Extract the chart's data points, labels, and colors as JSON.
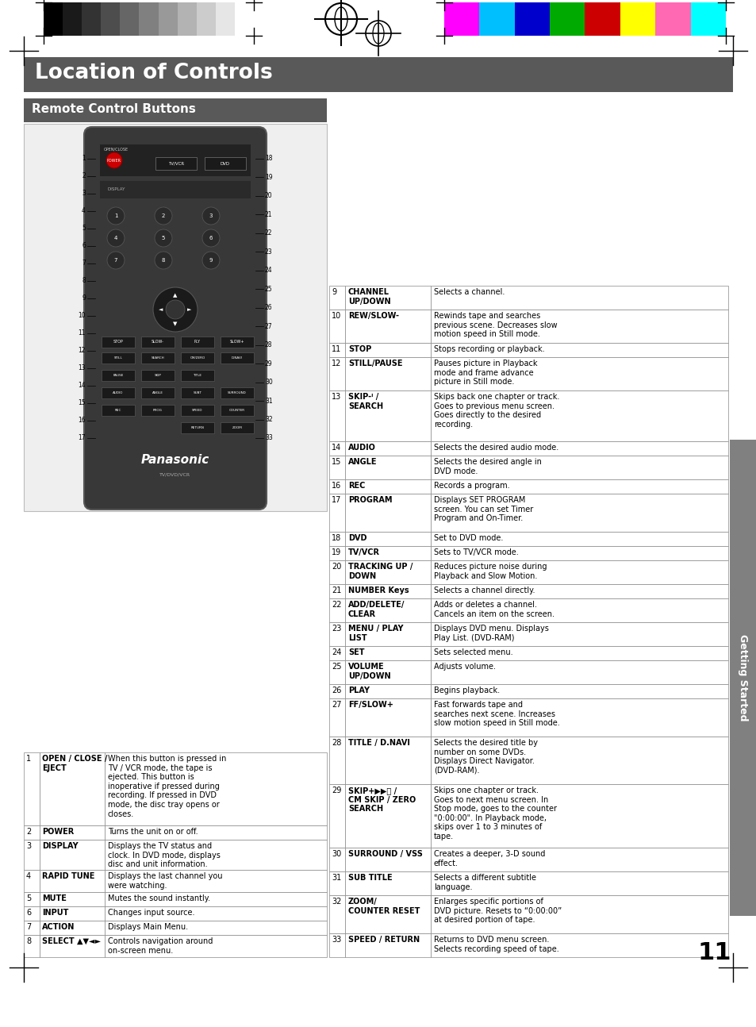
{
  "title": "Location of Controls",
  "subtitle": "Remote Control Buttons",
  "page_number": "11",
  "sidebar_text": "Getting Started",
  "title_bg": "#595959",
  "subtitle_bg": "#595959",
  "sidebar_bg": "#808080",
  "right_table": [
    {
      "num": "9",
      "button": "CHANNEL\nUP/DOWN",
      "desc": "Selects a channel."
    },
    {
      "num": "10",
      "button": "REW/SLOW-",
      "desc": "Rewinds tape and searches\nprevious scene. Decreases slow\nmotion speed in Still mode."
    },
    {
      "num": "11",
      "button": "STOP",
      "desc": "Stops recording or playback."
    },
    {
      "num": "12",
      "button": "STILL/PAUSE",
      "desc": "Pauses picture in Playback\nmode and frame advance\npicture in Still mode."
    },
    {
      "num": "13",
      "button": "SKIP-ᑊ /\nSEARCH",
      "desc": "Skips back one chapter or track.\nGoes to previous menu screen.\nGoes directly to the desired\nrecording."
    },
    {
      "num": "14",
      "button": "AUDIO",
      "desc": "Selects the desired audio mode."
    },
    {
      "num": "15",
      "button": "ANGLE",
      "desc": "Selects the desired angle in\nDVD mode."
    },
    {
      "num": "16",
      "button": "REC",
      "desc": "Records a program."
    },
    {
      "num": "17",
      "button": "PROGRAM",
      "desc": "Displays SET PROGRAM\nscreen. You can set Timer\nProgram and On-Timer."
    },
    {
      "num": "18",
      "button": "DVD",
      "desc": "Set to DVD mode."
    },
    {
      "num": "19",
      "button": "TV/VCR",
      "desc": "Sets to TV/VCR mode."
    },
    {
      "num": "20",
      "button": "TRACKING UP /\nDOWN",
      "desc": "Reduces picture noise during\nPlayback and Slow Motion."
    },
    {
      "num": "21",
      "button": "NUMBER Keys",
      "desc": "Selects a channel directly."
    },
    {
      "num": "22",
      "button": "ADD/DELETE/\nCLEAR",
      "desc": "Adds or deletes a channel.\nCancels an item on the screen."
    },
    {
      "num": "23",
      "button": "MENU / PLAY\nLIST",
      "desc": "Displays DVD menu. Displays\nPlay List. (DVD-RAM)"
    },
    {
      "num": "24",
      "button": "SET",
      "desc": "Sets selected menu."
    },
    {
      "num": "25",
      "button": "VOLUME\nUP/DOWN",
      "desc": "Adjusts volume."
    },
    {
      "num": "26",
      "button": "PLAY",
      "desc": "Begins playback."
    },
    {
      "num": "27",
      "button": "FF/SLOW+",
      "desc": "Fast forwards tape and\nsearches next scene. Increases\nslow motion speed in Still mode."
    },
    {
      "num": "28",
      "button": "TITLE / D.NAVI",
      "desc": "Selects the desired title by\nnumber on some DVDs.\nDisplays Direct Navigator.\n(DVD-RAM)."
    },
    {
      "num": "29",
      "button": "SKIP+▶▶ᑋ /\nCM SKIP / ZERO\nSEARCH",
      "desc": "Skips one chapter or track.\nGoes to next menu screen. In\nStop mode, goes to the counter\n\"0:00:00\". In Playback mode,\nskips over 1 to 3 minutes of\ntape."
    },
    {
      "num": "30",
      "button": "SURROUND / VSS",
      "desc": "Creates a deeper, 3-D sound\neffect."
    },
    {
      "num": "31",
      "button": "SUB TITLE",
      "desc": "Selects a different subtitle\nlanguage."
    },
    {
      "num": "32",
      "button": "ZOOM/\nCOUNTER RESET",
      "desc": "Enlarges specific portions of\nDVD picture. Resets to “0:00:00”\nat desired portion of tape."
    },
    {
      "num": "33",
      "button": "SPEED / RETURN",
      "desc": "Returns to DVD menu screen.\nSelects recording speed of tape."
    }
  ],
  "bottom_table": [
    {
      "num": "1",
      "button": "OPEN / CLOSE /\nEJECT",
      "desc": "When this button is pressed in\nTV / VCR mode, the tape is\nejected. This button is\ninoperative if pressed during\nrecording. If pressed in DVD\nmode, the disc tray opens or\ncloses."
    },
    {
      "num": "2",
      "button": "POWER",
      "desc": "Turns the unit on or off."
    },
    {
      "num": "3",
      "button": "DISPLAY",
      "desc": "Displays the TV status and\nclock. In DVD mode, displays\ndisc and unit information."
    },
    {
      "num": "4",
      "button": "RAPID TUNE",
      "desc": "Displays the last channel you\nwere watching."
    },
    {
      "num": "5",
      "button": "MUTE",
      "desc": "Mutes the sound instantly."
    },
    {
      "num": "6",
      "button": "INPUT",
      "desc": "Changes input source."
    },
    {
      "num": "7",
      "button": "ACTION",
      "desc": "Displays Main Menu."
    },
    {
      "num": "8",
      "button": "SELECT ▲▼◄►",
      "desc": "Controls navigation around\non-screen menu."
    }
  ],
  "color_bar_bw": [
    "#000000",
    "#1a1a1a",
    "#333333",
    "#4d4d4d",
    "#666666",
    "#808080",
    "#999999",
    "#b3b3b3",
    "#cccccc",
    "#e6e6e6",
    "#ffffff"
  ],
  "color_bar_color": [
    "#ff00ff",
    "#00bfff",
    "#0000cd",
    "#00aa00",
    "#cc0000",
    "#ffff00",
    "#ff69b4",
    "#00ffff"
  ],
  "bg_color": "#ffffff"
}
